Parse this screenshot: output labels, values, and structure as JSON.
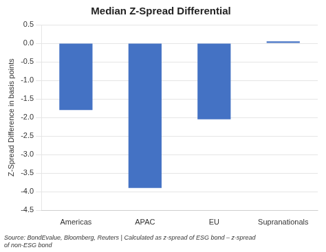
{
  "chart_data": {
    "type": "bar",
    "title": "Median Z-Spread Differential",
    "ylabel": "Z-Spread Difference in basis points",
    "annotation": "Source: BondEvalue, Bloomberg, Reuters | Calculated as z-spread of ESG bond – z-spread\nof non-ESG bond",
    "categories": [
      "Americas",
      "APAC",
      "EU",
      "Supranationals"
    ],
    "values": [
      -1.8,
      -3.9,
      -2.05,
      0.05
    ],
    "color": "#4472C4",
    "ylim": [
      -4.5,
      0.5
    ],
    "yticks": [
      0.5,
      {
        "value": 0.0,
        "label": "0.0"
      },
      -0.5,
      {
        "value": -1.0,
        "label": "-1.0"
      },
      -1.5,
      {
        "value": -2.0,
        "label": "-2.0"
      },
      -2.5,
      {
        "value": -3.0,
        "label": "-3.0"
      },
      -3.5,
      {
        "value": -4.0,
        "label": "-4.0"
      },
      -4.5
    ],
    "grid": true
  }
}
